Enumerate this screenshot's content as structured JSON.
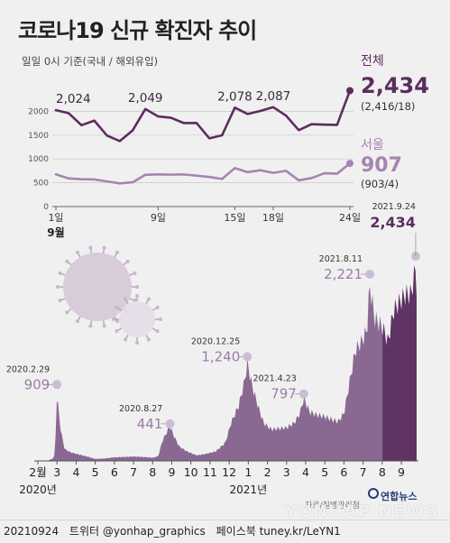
{
  "title": "코로나19 신규 확진자 추이",
  "subtitle": "일일 0시 기준(국내 / 해외유입)",
  "credit": {
    "date": "20210924",
    "twitter": "트위터 @yonhap_graphics",
    "facebook": "페이스북 tuney.kr/LeYN1"
  },
  "source": "자료/질병관리청",
  "logo": "연합뉴스",
  "watermark": "YONHAP NEWS",
  "colors": {
    "total": "#5b2d5e",
    "seoul": "#a584b2",
    "area": "#7d5a86",
    "highlight": "#c9b8d2",
    "label_light": "#9a7ca6"
  },
  "chart_data": [
    {
      "type": "line",
      "x_label_month": "9월",
      "x_ticks": [
        "1일",
        "9일",
        "15일",
        "18일",
        "24일"
      ],
      "x_tick_days": [
        1,
        9,
        15,
        18,
        24
      ],
      "y_ticks": [
        "0",
        "500",
        "1000",
        "1500",
        "2000"
      ],
      "y_tick_values": [
        0,
        500,
        1000,
        1500,
        2000
      ],
      "ylim": [
        0,
        2500
      ],
      "xlim": [
        1,
        24
      ],
      "series": [
        {
          "name": "전체",
          "color": "#5b2d5e",
          "x": [
            1,
            2,
            3,
            4,
            5,
            6,
            7,
            8,
            9,
            10,
            11,
            12,
            13,
            14,
            15,
            16,
            17,
            18,
            19,
            20,
            21,
            22,
            23,
            24
          ],
          "values": [
            2024,
            1960,
            1708,
            1804,
            1490,
            1375,
            1597,
            2049,
            1892,
            1865,
            1754,
            1755,
            1433,
            1497,
            2078,
            1943,
            2008,
            2087,
            1910,
            1604,
            1729,
            1720,
            1716,
            2434
          ]
        },
        {
          "name": "서울",
          "color": "#a584b2",
          "x": [
            1,
            2,
            3,
            4,
            5,
            6,
            7,
            8,
            9,
            10,
            11,
            12,
            13,
            14,
            15,
            16,
            17,
            18,
            19,
            20,
            21,
            22,
            23,
            24
          ],
          "values": [
            677,
            590,
            575,
            570,
            528,
            486,
            510,
            667,
            675,
            670,
            675,
            649,
            622,
            580,
            808,
            723,
            763,
            708,
            750,
            551,
            598,
            700,
            690,
            907
          ]
        }
      ],
      "point_labels": [
        {
          "series": 0,
          "index": 0,
          "text": "2,024"
        },
        {
          "series": 0,
          "index": 7,
          "text": "2,049"
        },
        {
          "series": 0,
          "index": 14,
          "text": "2,078"
        },
        {
          "series": 0,
          "index": 17,
          "text": "2,087"
        }
      ],
      "end_labels": {
        "total": {
          "name": "전체",
          "value": "2,434",
          "detail": "(2,416/18)"
        },
        "seoul": {
          "name": "서울",
          "value": "907",
          "detail": "(903/4)"
        }
      }
    },
    {
      "type": "area",
      "x_ticks": [
        "2월",
        "3",
        "4",
        "5",
        "6",
        "7",
        "8",
        "9",
        "10",
        "11",
        "12",
        "1",
        "2",
        "3",
        "4",
        "5",
        "6",
        "7",
        "8",
        "9"
      ],
      "x_tick_month_index": [
        0,
        1,
        2,
        3,
        4,
        5,
        6,
        7,
        8,
        9,
        10,
        11,
        12,
        13,
        14,
        15,
        16,
        17,
        18,
        19
      ],
      "year_labels": [
        {
          "text": "2020년",
          "month_index": 0
        },
        {
          "text": "2021년",
          "month_index": 11
        }
      ],
      "xlim": [
        0,
        19.8
      ],
      "ylim": [
        0,
        2500
      ],
      "anchors": [
        [
          0.0,
          0
        ],
        [
          0.5,
          2
        ],
        [
          0.85,
          40
        ],
        [
          0.95,
          400
        ],
        [
          1.0,
          909
        ],
        [
          1.05,
          700
        ],
        [
          1.2,
          380
        ],
        [
          1.4,
          150
        ],
        [
          1.7,
          110
        ],
        [
          2.0,
          90
        ],
        [
          2.5,
          60
        ],
        [
          3.0,
          25
        ],
        [
          3.5,
          30
        ],
        [
          4.0,
          45
        ],
        [
          4.5,
          50
        ],
        [
          5.0,
          55
        ],
        [
          5.5,
          50
        ],
        [
          6.0,
          40
        ],
        [
          6.3,
          60
        ],
        [
          6.5,
          250
        ],
        [
          6.9,
          441
        ],
        [
          7.1,
          320
        ],
        [
          7.4,
          180
        ],
        [
          7.8,
          120
        ],
        [
          8.3,
          70
        ],
        [
          8.8,
          90
        ],
        [
          9.3,
          120
        ],
        [
          9.8,
          230
        ],
        [
          10.1,
          480
        ],
        [
          10.5,
          700
        ],
        [
          10.8,
          1000
        ],
        [
          10.95,
          1240
        ],
        [
          11.2,
          950
        ],
        [
          11.5,
          700
        ],
        [
          11.8,
          480
        ],
        [
          12.2,
          400
        ],
        [
          12.6,
          410
        ],
        [
          13.0,
          420
        ],
        [
          13.4,
          480
        ],
        [
          13.7,
          600
        ],
        [
          13.9,
          797
        ],
        [
          14.2,
          620
        ],
        [
          14.6,
          580
        ],
        [
          15.0,
          560
        ],
        [
          15.4,
          520
        ],
        [
          15.7,
          500
        ],
        [
          16.0,
          600
        ],
        [
          16.3,
          1000
        ],
        [
          16.6,
          1400
        ],
        [
          16.9,
          1500
        ],
        [
          17.2,
          1650
        ],
        [
          17.35,
          2221
        ],
        [
          17.6,
          1800
        ],
        [
          18.0,
          1700
        ],
        [
          18.3,
          1500
        ],
        [
          18.6,
          1900
        ],
        [
          18.9,
          2000
        ],
        [
          19.2,
          2100
        ],
        [
          19.5,
          2100
        ],
        [
          19.75,
          2434
        ],
        [
          19.8,
          2200
        ]
      ],
      "highlight_from": 18.0,
      "annotations": [
        {
          "date": "2020.2.29",
          "value": "909",
          "month_pos": 1.0,
          "y": 909
        },
        {
          "date": "2020.8.27",
          "value": "441",
          "month_pos": 6.9,
          "y": 441
        },
        {
          "date": "2020.12.25",
          "value": "1,240",
          "month_pos": 10.95,
          "y": 1240
        },
        {
          "date": "2021.4.23",
          "value": "797",
          "month_pos": 13.9,
          "y": 797
        },
        {
          "date": "2021.8.11",
          "value": "2,221",
          "month_pos": 17.35,
          "y": 2221
        },
        {
          "date": "2021.9.24",
          "value": "2,434",
          "month_pos": 19.75,
          "y": 2434
        }
      ]
    }
  ]
}
